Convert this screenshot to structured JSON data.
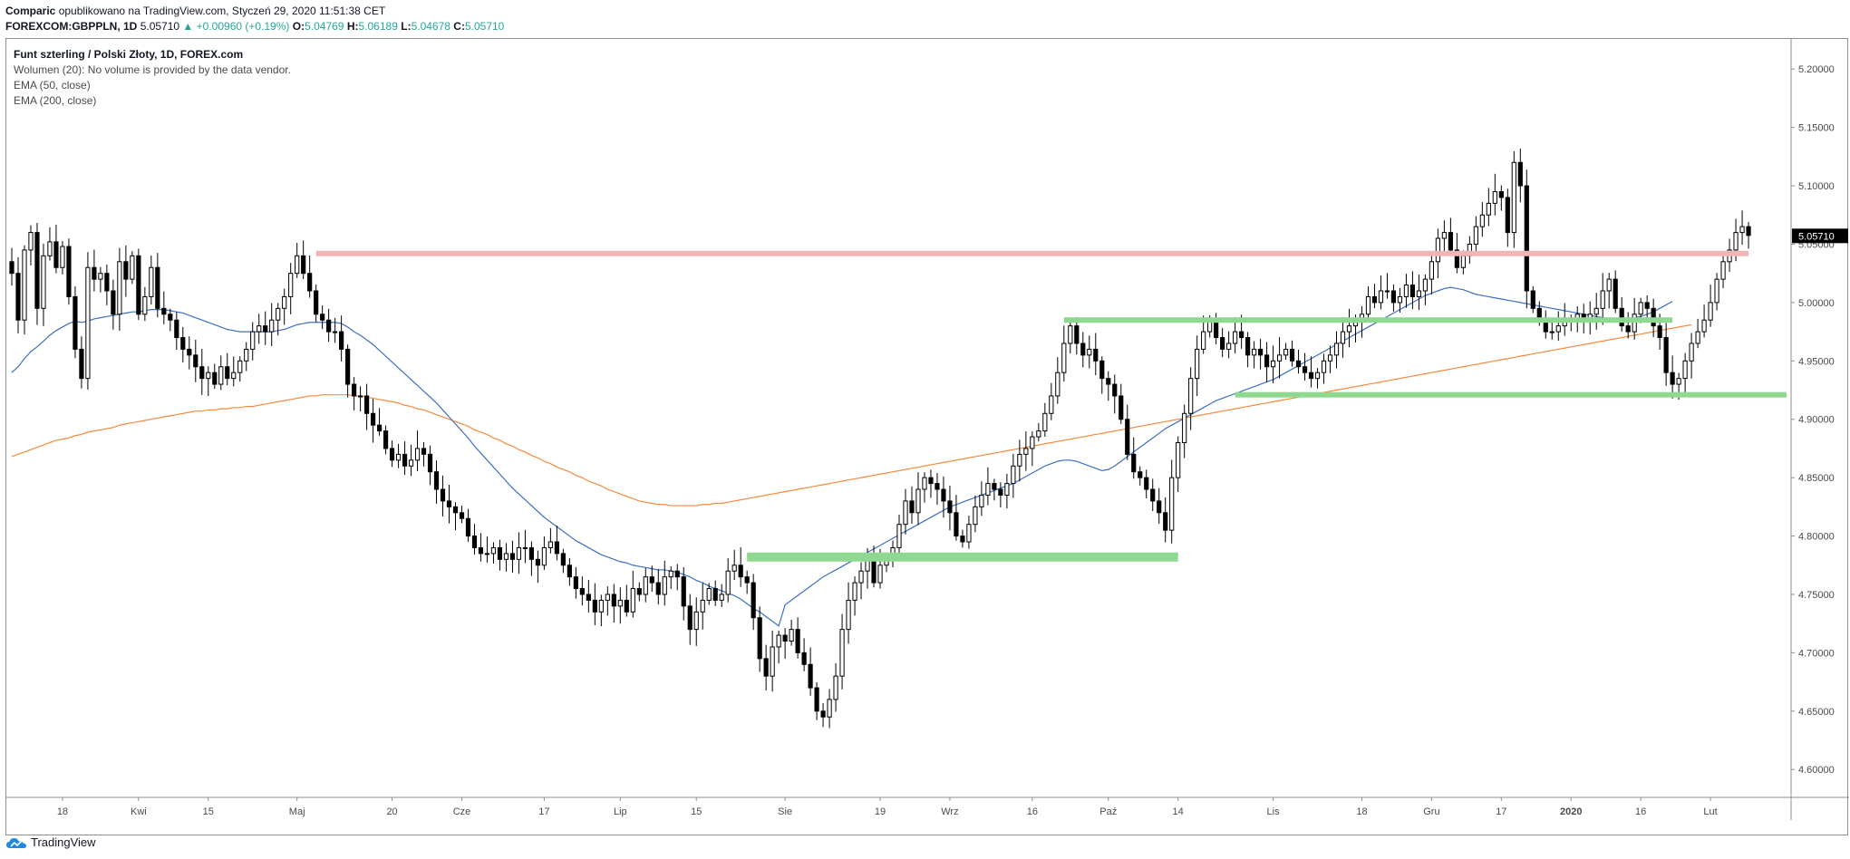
{
  "header": {
    "author": "Comparic",
    "published_text": "opublikowano na TradingView.com, Styczeń 29, 2020 11:51:38 CET",
    "symbol": "FOREXCOM:GBPPLN, 1D",
    "last_price": "5.05710",
    "change": "+0.00960 (+0.19%)",
    "open_label": "O:",
    "open": "5.04769",
    "high_label": "H:",
    "high": "5.06189",
    "low_label": "L:",
    "low": "5.04678",
    "close_label": "C:",
    "close": "5.05710"
  },
  "legend": {
    "title": "Funt szterling / Polski Złoty, 1D, FOREX.com",
    "volume": "Wolumen (20): No volume is provided by the data vendor.",
    "ema50": "EMA (50, close)",
    "ema200": "EMA (200, close)"
  },
  "footer": {
    "brand": "TradingView"
  },
  "colors": {
    "ema50": "#3c6fc0",
    "ema200": "#f7893b",
    "resistance": "#f2b5b5",
    "support": "#8fd88f",
    "price_label_bg": "#000000"
  },
  "chart_data": {
    "type": "candlestick",
    "y_axis": {
      "min": 4.58,
      "max": 5.225,
      "ticks": [
        4.6,
        4.65,
        4.7,
        4.75,
        4.8,
        4.85,
        4.9,
        4.95,
        5.0,
        5.05,
        5.1,
        5.15,
        5.2
      ],
      "tick_labels": [
        "4.60000",
        "4.65000",
        "4.70000",
        "4.75000",
        "4.80000",
        "4.85000",
        "4.90000",
        "4.95000",
        "5.00000",
        "5.05000",
        "5.10000",
        "5.15000",
        "5.20000"
      ]
    },
    "x_axis": {
      "range": [
        0,
        280
      ],
      "ticks": [
        {
          "i": 8,
          "label": "18"
        },
        {
          "i": 20,
          "label": "Kwi"
        },
        {
          "i": 31,
          "label": "15"
        },
        {
          "i": 45,
          "label": "Maj"
        },
        {
          "i": 60,
          "label": "20"
        },
        {
          "i": 71,
          "label": "Cze"
        },
        {
          "i": 84,
          "label": "17"
        },
        {
          "i": 96,
          "label": "Lip"
        },
        {
          "i": 108,
          "label": "15"
        },
        {
          "i": 122,
          "label": "Sie"
        },
        {
          "i": 137,
          "label": "19"
        },
        {
          "i": 148,
          "label": "Wrz"
        },
        {
          "i": 161,
          "label": "16"
        },
        {
          "i": 173,
          "label": "Paź"
        },
        {
          "i": 184,
          "label": "14"
        },
        {
          "i": 199,
          "label": "Lis"
        },
        {
          "i": 213,
          "label": "18"
        },
        {
          "i": 224,
          "label": "Gru"
        },
        {
          "i": 235,
          "label": "17"
        },
        {
          "i": 246,
          "label": "2020"
        },
        {
          "i": 257,
          "label": "16"
        },
        {
          "i": 268,
          "label": "Lut"
        }
      ]
    },
    "last_price": 5.0571,
    "last_price_label": "5.05710",
    "closes": [
      5.025,
      4.985,
      5.045,
      5.06,
      4.995,
      5.04,
      5.052,
      5.03,
      5.048,
      5.005,
      4.96,
      4.935,
      5.03,
      5.02,
      5.025,
      5.01,
      4.99,
      5.035,
      5.02,
      5.04,
      4.99,
      5.005,
      5.03,
      4.995,
      4.99,
      4.985,
      4.97,
      4.96,
      4.955,
      4.945,
      4.935,
      4.94,
      4.93,
      4.945,
      4.935,
      4.94,
      4.95,
      4.96,
      4.975,
      4.98,
      4.975,
      4.985,
      4.995,
      5.005,
      5.025,
      5.04,
      5.025,
      5.01,
      4.99,
      4.985,
      4.975,
      4.975,
      4.96,
      4.93,
      4.92,
      4.92,
      4.905,
      4.895,
      4.89,
      4.875,
      4.865,
      4.87,
      4.86,
      4.865,
      4.875,
      4.87,
      4.855,
      4.84,
      4.83,
      4.825,
      4.82,
      4.815,
      4.8,
      4.79,
      4.785,
      4.785,
      4.79,
      4.78,
      4.785,
      4.78,
      4.79,
      4.79,
      4.78,
      4.775,
      4.79,
      4.795,
      4.785,
      4.775,
      4.765,
      4.755,
      4.75,
      4.745,
      4.735,
      4.745,
      4.75,
      4.74,
      4.745,
      4.735,
      4.755,
      4.75,
      4.765,
      4.76,
      4.75,
      4.765,
      4.77,
      4.765,
      4.74,
      4.72,
      4.735,
      4.745,
      4.755,
      4.745,
      4.75,
      4.77,
      4.775,
      4.765,
      4.76,
      4.73,
      4.695,
      4.68,
      4.705,
      4.715,
      4.71,
      4.72,
      4.7,
      4.69,
      4.67,
      4.65,
      4.645,
      4.66,
      4.68,
      4.72,
      4.745,
      4.76,
      4.77,
      4.78,
      4.76,
      4.775,
      4.78,
      4.79,
      4.81,
      4.83,
      4.82,
      4.84,
      4.85,
      4.845,
      4.84,
      4.83,
      4.82,
      4.8,
      4.795,
      4.81,
      4.825,
      4.835,
      4.845,
      4.84,
      4.835,
      4.845,
      4.86,
      4.87,
      4.875,
      4.885,
      4.89,
      4.905,
      4.92,
      4.94,
      4.965,
      4.98,
      4.965,
      4.955,
      4.96,
      4.95,
      4.935,
      4.93,
      4.92,
      4.9,
      4.87,
      4.855,
      4.85,
      4.84,
      4.83,
      4.82,
      4.805,
      4.85,
      4.88,
      4.905,
      4.935,
      4.96,
      4.975,
      4.985,
      4.97,
      4.96,
      4.965,
      4.975,
      4.97,
      4.955,
      4.96,
      4.955,
      4.945,
      4.95,
      4.955,
      4.96,
      4.95,
      4.945,
      4.94,
      4.935,
      4.94,
      4.95,
      4.955,
      4.965,
      4.975,
      4.98,
      4.985,
      4.99,
      5.005,
      5.0,
      5.01,
      5.01,
      5.0,
      5.005,
      5.015,
      5.005,
      5.01,
      5.02,
      5.035,
      5.055,
      5.06,
      5.045,
      5.03,
      5.04,
      5.05,
      5.065,
      5.075,
      5.085,
      5.095,
      5.09,
      5.06,
      5.12,
      5.1,
      5.01,
      4.995,
      4.985,
      4.975,
      4.975,
      4.98,
      4.985,
      4.985,
      4.99,
      4.985,
      4.99,
      4.995,
      5.01,
      5.02,
      4.995,
      4.98,
      4.975,
      4.99,
      5.0,
      4.995,
      4.98,
      4.97,
      4.94,
      4.93,
      4.935,
      4.95,
      4.965,
      4.975,
      4.985,
      5.0,
      5.02,
      5.035,
      5.045,
      5.06,
      5.065,
      5.0575
    ],
    "ema50": [
      4.94,
      4.945,
      4.952,
      4.958,
      4.962,
      4.967,
      4.972,
      4.976,
      4.979,
      4.982,
      4.984,
      4.983,
      4.984,
      4.986,
      4.987,
      4.988,
      4.989,
      4.99,
      4.991,
      4.992,
      4.992,
      4.993,
      4.994,
      4.994,
      4.994,
      4.993,
      4.992,
      4.991,
      4.989,
      4.987,
      4.985,
      4.983,
      4.981,
      4.979,
      4.977,
      4.976,
      4.975,
      4.975,
      4.975,
      4.975,
      4.975,
      4.975,
      4.976,
      4.977,
      4.979,
      4.981,
      4.982,
      4.983,
      4.983,
      4.983,
      4.983,
      4.983,
      4.982,
      4.979,
      4.975,
      4.972,
      4.968,
      4.964,
      4.959,
      4.954,
      4.949,
      4.944,
      4.939,
      4.934,
      4.929,
      4.924,
      4.919,
      4.914,
      4.908,
      4.902,
      4.896,
      4.89,
      4.884,
      4.877,
      4.871,
      4.865,
      4.859,
      4.853,
      4.847,
      4.841,
      4.836,
      4.831,
      4.826,
      4.821,
      4.816,
      4.812,
      4.808,
      4.804,
      4.8,
      4.796,
      4.793,
      4.79,
      4.787,
      4.784,
      4.782,
      4.78,
      4.778,
      4.777,
      4.775,
      4.774,
      4.773,
      4.772,
      4.771,
      4.771,
      4.77,
      4.769,
      4.767,
      4.765,
      4.762,
      4.76,
      4.757,
      4.755,
      4.753,
      4.751,
      4.749,
      4.746,
      4.742,
      4.738,
      4.735,
      4.731,
      4.727,
      4.723,
      4.741,
      4.745,
      4.749,
      4.753,
      4.757,
      4.761,
      4.765,
      4.768,
      4.771,
      4.774,
      4.777,
      4.78,
      4.783,
      4.786,
      4.789,
      4.792,
      4.795,
      4.798,
      4.801,
      4.804,
      4.807,
      4.81,
      4.813,
      4.816,
      4.819,
      4.822,
      4.825,
      4.827,
      4.829,
      4.831,
      4.833,
      4.835,
      4.837,
      4.839,
      4.841,
      4.843,
      4.845,
      4.848,
      4.851,
      4.854,
      4.857,
      4.86,
      4.862,
      4.864,
      4.865,
      4.865,
      4.864,
      4.862,
      4.86,
      4.858,
      4.856,
      4.857,
      4.86,
      4.864,
      4.868,
      4.872,
      4.876,
      4.88,
      4.884,
      4.888,
      4.892,
      4.895,
      4.898,
      4.901,
      4.904,
      4.907,
      4.91,
      4.913,
      4.916,
      4.918,
      4.92,
      4.922,
      4.924,
      4.926,
      4.928,
      4.93,
      4.932,
      4.934,
      4.937,
      4.94,
      4.943,
      4.946,
      4.949,
      4.952,
      4.955,
      4.958,
      4.961,
      4.964,
      4.967,
      4.97,
      4.973,
      4.976,
      4.979,
      4.982,
      4.985,
      4.988,
      4.991,
      4.994,
      4.997,
      5.0,
      5.003,
      5.006,
      5.008,
      5.01,
      5.012,
      5.013,
      5.012,
      5.011,
      5.009,
      5.007,
      5.006,
      5.005,
      5.004,
      5.003,
      5.002,
      5.001,
      5.0,
      4.999,
      4.998,
      4.997,
      4.996,
      4.995,
      4.994,
      4.993,
      4.992,
      4.991,
      4.99,
      4.989,
      4.988,
      4.987,
      4.986,
      4.986,
      4.986,
      4.986,
      4.987,
      4.988,
      4.99,
      4.992,
      4.995,
      4.998,
      5.001
    ],
    "ema200": [
      4.868,
      4.87,
      4.872,
      4.874,
      4.876,
      4.878,
      4.88,
      4.882,
      4.883,
      4.884,
      4.886,
      4.887,
      4.889,
      4.89,
      4.891,
      4.892,
      4.893,
      4.895,
      4.896,
      4.897,
      4.898,
      4.899,
      4.9,
      4.901,
      4.902,
      4.903,
      4.904,
      4.905,
      4.906,
      4.907,
      4.907,
      4.908,
      4.908,
      4.909,
      4.909,
      4.91,
      4.91,
      4.911,
      4.911,
      4.912,
      4.913,
      4.914,
      4.915,
      4.916,
      4.917,
      4.918,
      4.919,
      4.92,
      4.92,
      4.921,
      4.921,
      4.921,
      4.921,
      4.921,
      4.92,
      4.92,
      4.919,
      4.918,
      4.917,
      4.916,
      4.915,
      4.914,
      4.912,
      4.911,
      4.909,
      4.908,
      4.906,
      4.904,
      4.902,
      4.9,
      4.898,
      4.896,
      4.894,
      4.891,
      4.889,
      4.887,
      4.884,
      4.882,
      4.879,
      4.877,
      4.874,
      4.872,
      4.869,
      4.867,
      4.864,
      4.862,
      4.859,
      4.857,
      4.855,
      4.852,
      4.85,
      4.847,
      4.845,
      4.843,
      4.84,
      4.838,
      4.836,
      4.834,
      4.832,
      4.83,
      4.829,
      4.828,
      4.827,
      4.827,
      4.826,
      4.826,
      4.826,
      4.826,
      4.826,
      4.827,
      4.827,
      4.828,
      4.828,
      4.829,
      4.83,
      4.831,
      4.832,
      4.833,
      4.834,
      4.835,
      4.836,
      4.837,
      4.838,
      4.839,
      4.84,
      4.841,
      4.842,
      4.843,
      4.844,
      4.845,
      4.846,
      4.847,
      4.848,
      4.849,
      4.85,
      4.851,
      4.852,
      4.853,
      4.854,
      4.855,
      4.856,
      4.857,
      4.858,
      4.859,
      4.86,
      4.861,
      4.862,
      4.863,
      4.864,
      4.865,
      4.866,
      4.867,
      4.868,
      4.869,
      4.87,
      4.871,
      4.872,
      4.873,
      4.874,
      4.875,
      4.876,
      4.877,
      4.878,
      4.879,
      4.88,
      4.881,
      4.882,
      4.883,
      4.884,
      4.885,
      4.886,
      4.887,
      4.888,
      4.889,
      4.89,
      4.891,
      4.892,
      4.893,
      4.894,
      4.895,
      4.896,
      4.897,
      4.898,
      4.899,
      4.9,
      4.901,
      4.902,
      4.903,
      4.904,
      4.905,
      4.906,
      4.907,
      4.908,
      4.909,
      4.91,
      4.911,
      4.912,
      4.913,
      4.914,
      4.915,
      4.916,
      4.917,
      4.918,
      4.919,
      4.92,
      4.921,
      4.922,
      4.923,
      4.924,
      4.925,
      4.926,
      4.927,
      4.928,
      4.929,
      4.93,
      4.931,
      4.932,
      4.933,
      4.934,
      4.935,
      4.936,
      4.937,
      4.938,
      4.939,
      4.94,
      4.941,
      4.942,
      4.943,
      4.944,
      4.945,
      4.946,
      4.947,
      4.948,
      4.949,
      4.95,
      4.951,
      4.952,
      4.953,
      4.954,
      4.955,
      4.956,
      4.957,
      4.958,
      4.959,
      4.96,
      4.961,
      4.962,
      4.963,
      4.964,
      4.965,
      4.966,
      4.967,
      4.968,
      4.969,
      4.97,
      4.971,
      4.972,
      4.973,
      4.974,
      4.975,
      4.976,
      4.977,
      4.978,
      4.979,
      4.98,
      4.981
    ],
    "annotations": [
      {
        "kind": "resistance",
        "price": 5.042,
        "from": 48,
        "to": 274
      },
      {
        "kind": "support",
        "price": 4.985,
        "from": 166,
        "to": 262
      },
      {
        "kind": "support",
        "price": 4.921,
        "from": 193,
        "to": 280
      },
      {
        "kind": "support",
        "price": 4.782,
        "from": 116,
        "to": 184
      }
    ]
  }
}
